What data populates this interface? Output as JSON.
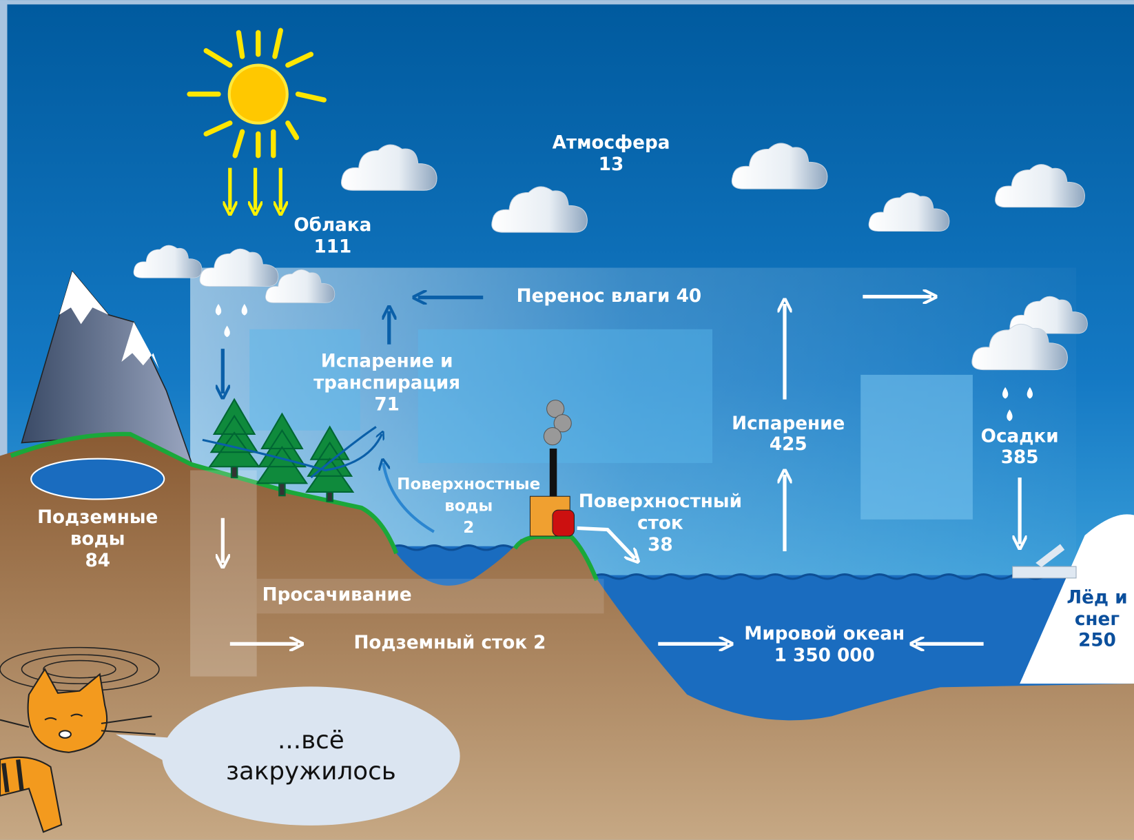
{
  "title": null,
  "labels": {
    "atmosphere": [
      "Атмосфера",
      "13"
    ],
    "clouds": [
      "Облака",
      "111"
    ],
    "moisture_transport": [
      "Перенос влаги 40"
    ],
    "evapotranspiration": [
      "Испарение и",
      "транспирация",
      "71"
    ],
    "surface_water": [
      "Поверхностные",
      "воды",
      "2"
    ],
    "surface_runoff": [
      "Поверхностный",
      "сток",
      "38"
    ],
    "evaporation": [
      "Испарение",
      "425"
    ],
    "precipitation": [
      "Осадки",
      "385"
    ],
    "groundwater": [
      "Подземные",
      "воды",
      "84"
    ],
    "infiltration": [
      "Просачивание"
    ],
    "groundwater_runoff": [
      "Подземный сток 2"
    ],
    "ocean": [
      "Мировой океан",
      "1 350 000"
    ],
    "ice_snow": [
      "Лёд и",
      "снег",
      "250"
    ]
  },
  "speech": [
    "...всё",
    "закружилось"
  ]
}
